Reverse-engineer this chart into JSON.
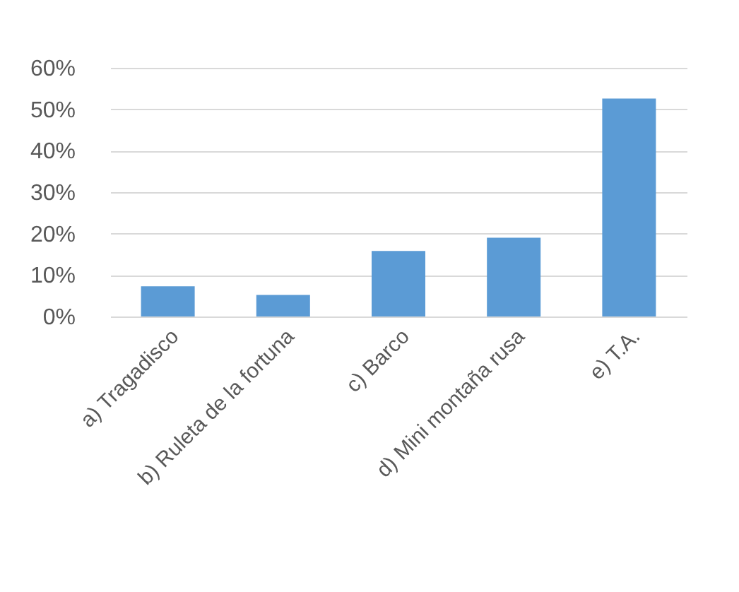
{
  "chart_data": {
    "type": "bar",
    "categories": [
      "a) Tragadisco",
      "b) Ruleta de la fortuna",
      "c) Barco",
      "d) Mini montaña rusa",
      "e) T.A."
    ],
    "values": [
      7.3,
      5.2,
      15.8,
      19.0,
      52.6
    ],
    "color": "#5b9bd5",
    "ylim": [
      0,
      60
    ],
    "yticks": [
      {
        "value": 0,
        "label": "0%"
      },
      {
        "value": 10,
        "label": "10%"
      },
      {
        "value": 20,
        "label": "20%"
      },
      {
        "value": 30,
        "label": "30%"
      },
      {
        "value": 40,
        "label": "40%"
      },
      {
        "value": 50,
        "label": "50%"
      },
      {
        "value": 60,
        "label": "60%"
      }
    ],
    "grid": "y"
  }
}
